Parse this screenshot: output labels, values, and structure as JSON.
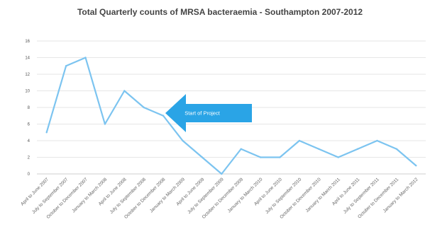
{
  "chart_data": {
    "type": "line",
    "title": "Total Quarterly counts of MRSA bacteraemia  - Southampton 2007-2012",
    "xlabel": "",
    "ylabel": "",
    "categories": [
      "April to June 2007",
      "July to September 2007",
      "October to December 2007",
      "January to March 2008",
      "April to June 2008",
      "July to September 2008",
      "October to December 2008",
      "January to March 2009",
      "April to June 2009",
      "July to September 2009",
      "October to December 2009",
      "January to March 2010",
      "April to June 2010",
      "July to September 2010",
      "October to December 2010",
      "January to March 2011",
      "April to June 2011",
      "July to September 2011",
      "October to December 2011",
      "January to March 2012"
    ],
    "series": [
      {
        "values": [
          5,
          13,
          14,
          6,
          10,
          8,
          7,
          4,
          2,
          0,
          3,
          2,
          2,
          4,
          3,
          2,
          3,
          4,
          3,
          1
        ]
      }
    ],
    "ylim": [
      0,
      16
    ],
    "yticks": [
      0,
      2,
      4,
      6,
      8,
      10,
      12,
      14,
      16
    ],
    "grid": true,
    "line_color": "#7cc4f0",
    "annotation": {
      "text": "Start of Project",
      "arrow_color": "#2aa4e6",
      "points_to_category_index": 6
    }
  }
}
